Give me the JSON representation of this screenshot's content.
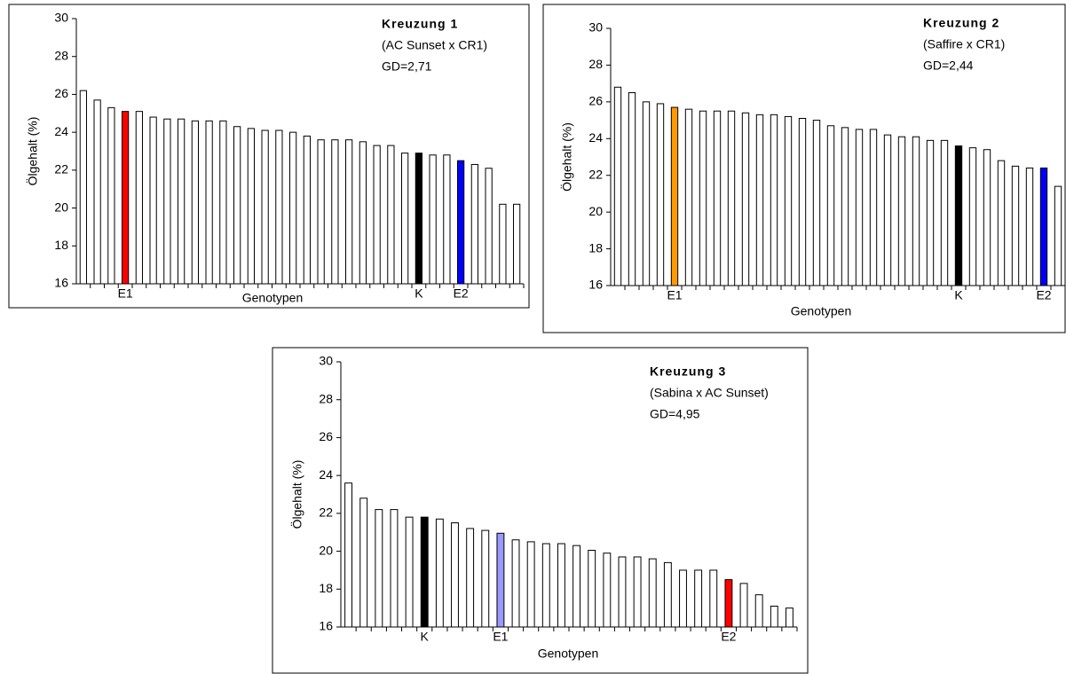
{
  "chart_data": [
    {
      "type": "bar",
      "title": "Kreuzung 1",
      "annotations": [
        "(AC Sunset x CR1)",
        "GD=2,71"
      ],
      "y_label": "Ölgehalt (%)",
      "x_label": "Genotypen",
      "categories": [
        null,
        null,
        null,
        "E1",
        null,
        null,
        null,
        null,
        null,
        null,
        null,
        null,
        null,
        null,
        null,
        null,
        null,
        null,
        null,
        null,
        null,
        null,
        null,
        null,
        "K",
        null,
        null,
        "E2",
        null,
        null,
        null,
        null
      ],
      "values": [
        26.2,
        25.7,
        25.3,
        25.1,
        25.1,
        24.8,
        24.7,
        24.7,
        24.6,
        24.6,
        24.6,
        24.3,
        24.2,
        24.1,
        24.1,
        24.0,
        23.8,
        23.6,
        23.6,
        23.6,
        23.5,
        23.3,
        23.3,
        22.9,
        22.9,
        22.8,
        22.8,
        22.5,
        22.3,
        22.1,
        20.2,
        20.2
      ],
      "bar_colors": [
        "#ffffff",
        "#ffffff",
        "#ffffff",
        "#ff0000",
        "#ffffff",
        "#ffffff",
        "#ffffff",
        "#ffffff",
        "#ffffff",
        "#ffffff",
        "#ffffff",
        "#ffffff",
        "#ffffff",
        "#ffffff",
        "#ffffff",
        "#ffffff",
        "#ffffff",
        "#ffffff",
        "#ffffff",
        "#ffffff",
        "#ffffff",
        "#ffffff",
        "#ffffff",
        "#ffffff",
        "#000000",
        "#ffffff",
        "#ffffff",
        "#0000ff",
        "#ffffff",
        "#ffffff",
        "#ffffff",
        "#ffffff"
      ],
      "ylim": [
        16,
        30
      ],
      "yticks": [
        16,
        18,
        20,
        22,
        24,
        26,
        28,
        30
      ]
    },
    {
      "type": "bar",
      "title": "Kreuzung 2",
      "annotations": [
        "(Saffire x CR1)",
        "GD=2,44"
      ],
      "y_label": "Ölgehalt (%)",
      "x_label": "Genotypen",
      "categories": [
        null,
        null,
        null,
        null,
        "E1",
        null,
        null,
        null,
        null,
        null,
        null,
        null,
        null,
        null,
        null,
        null,
        null,
        null,
        null,
        null,
        null,
        null,
        null,
        null,
        "K",
        null,
        null,
        null,
        null,
        null,
        "E2",
        null
      ],
      "values": [
        26.8,
        26.5,
        26.0,
        25.9,
        25.7,
        25.6,
        25.5,
        25.5,
        25.5,
        25.4,
        25.3,
        25.3,
        25.2,
        25.1,
        25.0,
        24.7,
        24.6,
        24.5,
        24.5,
        24.2,
        24.1,
        24.1,
        23.9,
        23.9,
        23.6,
        23.5,
        23.4,
        22.8,
        22.5,
        22.4,
        22.4,
        21.4
      ],
      "bar_colors": [
        "#ffffff",
        "#ffffff",
        "#ffffff",
        "#ffffff",
        "#ff9900",
        "#ffffff",
        "#ffffff",
        "#ffffff",
        "#ffffff",
        "#ffffff",
        "#ffffff",
        "#ffffff",
        "#ffffff",
        "#ffffff",
        "#ffffff",
        "#ffffff",
        "#ffffff",
        "#ffffff",
        "#ffffff",
        "#ffffff",
        "#ffffff",
        "#ffffff",
        "#ffffff",
        "#ffffff",
        "#000000",
        "#ffffff",
        "#ffffff",
        "#ffffff",
        "#ffffff",
        "#ffffff",
        "#0000ff",
        "#ffffff"
      ],
      "ylim": [
        16,
        30
      ],
      "yticks": [
        16,
        18,
        20,
        22,
        24,
        26,
        28,
        30
      ]
    },
    {
      "type": "bar",
      "title": "Kreuzung 3",
      "annotations": [
        "(Sabina x AC Sunset)",
        "GD=4,95"
      ],
      "y_label": "Ölgehalt (%)",
      "x_label": "Genotypen",
      "categories": [
        null,
        null,
        null,
        null,
        null,
        "K",
        null,
        null,
        null,
        null,
        "E1",
        null,
        null,
        null,
        null,
        null,
        null,
        null,
        null,
        null,
        null,
        null,
        null,
        null,
        null,
        "E2",
        null,
        null,
        null,
        null
      ],
      "values": [
        23.6,
        22.8,
        22.2,
        22.2,
        21.8,
        21.8,
        21.7,
        21.5,
        21.2,
        21.1,
        20.95,
        20.6,
        20.5,
        20.4,
        20.4,
        20.3,
        20.05,
        19.9,
        19.7,
        19.7,
        19.6,
        19.4,
        19.0,
        19.0,
        19.0,
        18.5,
        18.3,
        17.7,
        17.1,
        17.0
      ],
      "bar_colors": [
        "#ffffff",
        "#ffffff",
        "#ffffff",
        "#ffffff",
        "#ffffff",
        "#000000",
        "#ffffff",
        "#ffffff",
        "#ffffff",
        "#ffffff",
        "#9999ff",
        "#ffffff",
        "#ffffff",
        "#ffffff",
        "#ffffff",
        "#ffffff",
        "#ffffff",
        "#ffffff",
        "#ffffff",
        "#ffffff",
        "#ffffff",
        "#ffffff",
        "#ffffff",
        "#ffffff",
        "#ffffff",
        "#ff0000",
        "#ffffff",
        "#ffffff",
        "#ffffff",
        "#ffffff"
      ],
      "ylim": [
        16,
        30
      ],
      "yticks": [
        16,
        18,
        20,
        22,
        24,
        26,
        28,
        30
      ]
    }
  ]
}
